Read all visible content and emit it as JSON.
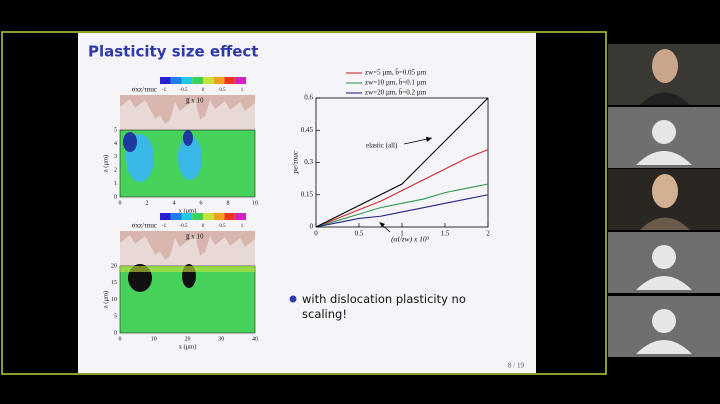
{
  "slide": {
    "title": "Plasticity size effect",
    "bullet": "with dislocation plasticity no scaling!",
    "page": "8 / 19",
    "top_panel": {
      "colorbar_label": "σxz/τnuc",
      "colorbar_ticks": [
        "-1",
        "-0.5",
        "0",
        "0.5",
        "1"
      ],
      "overlay": "g̅ x 10",
      "x_label": "x (μm)",
      "y_label": "z (μm)",
      "x_ticks": [
        "0",
        "2",
        "4",
        "6",
        "8",
        "10"
      ],
      "y_ticks": [
        "0",
        "1",
        "2",
        "3",
        "4",
        "5"
      ]
    },
    "bottom_panel": {
      "colorbar_label": "σxz/τnuc",
      "colorbar_ticks": [
        "-1",
        "-0.5",
        "0",
        "0.5",
        "1"
      ],
      "overlay": "g̅ x 10",
      "x_label": "x (μm)",
      "y_label": "z (μm)",
      "x_ticks": [
        "0",
        "10",
        "20",
        "30",
        "40"
      ],
      "y_ticks": [
        "0",
        "5",
        "10",
        "15",
        "20"
      ]
    }
  },
  "chart_data": {
    "type": "line",
    "x": [
      0,
      0.25,
      0.5,
      0.75,
      1,
      1.25,
      1.5,
      1.75,
      2
    ],
    "series": [
      {
        "name": "zw=5 µm,  b̄=0.05 µm",
        "color": "#d42a2a",
        "values": [
          0,
          0.04,
          0.08,
          0.12,
          0.17,
          0.22,
          0.27,
          0.32,
          0.36
        ]
      },
      {
        "name": "zw=10 µm,  b̄=0.1 µm",
        "color": "#2e9a4e",
        "values": [
          0,
          0.03,
          0.06,
          0.09,
          0.11,
          0.13,
          0.16,
          0.18,
          0.2
        ]
      },
      {
        "name": "zw=20 µm,  b̄=0.2 µm",
        "color": "#24268a",
        "values": [
          0,
          0.02,
          0.04,
          0.05,
          0.07,
          0.09,
          0.11,
          0.13,
          0.15
        ]
      },
      {
        "name": "elastic (all)",
        "color": "#000000",
        "values": [
          0,
          0.05,
          0.1,
          0.15,
          0.2,
          0.3,
          0.4,
          0.5,
          0.6
        ]
      }
    ],
    "xlim": [
      0,
      2
    ],
    "ylim": [
      0,
      0.6
    ],
    "xticks": [
      0,
      0.5,
      1,
      1.5,
      2
    ],
    "yticks": [
      0,
      0.15,
      0.3,
      0.45,
      0.6
    ],
    "x_label": "(αl/zw) x 10³",
    "y_label": "pe/τnuc"
  }
}
